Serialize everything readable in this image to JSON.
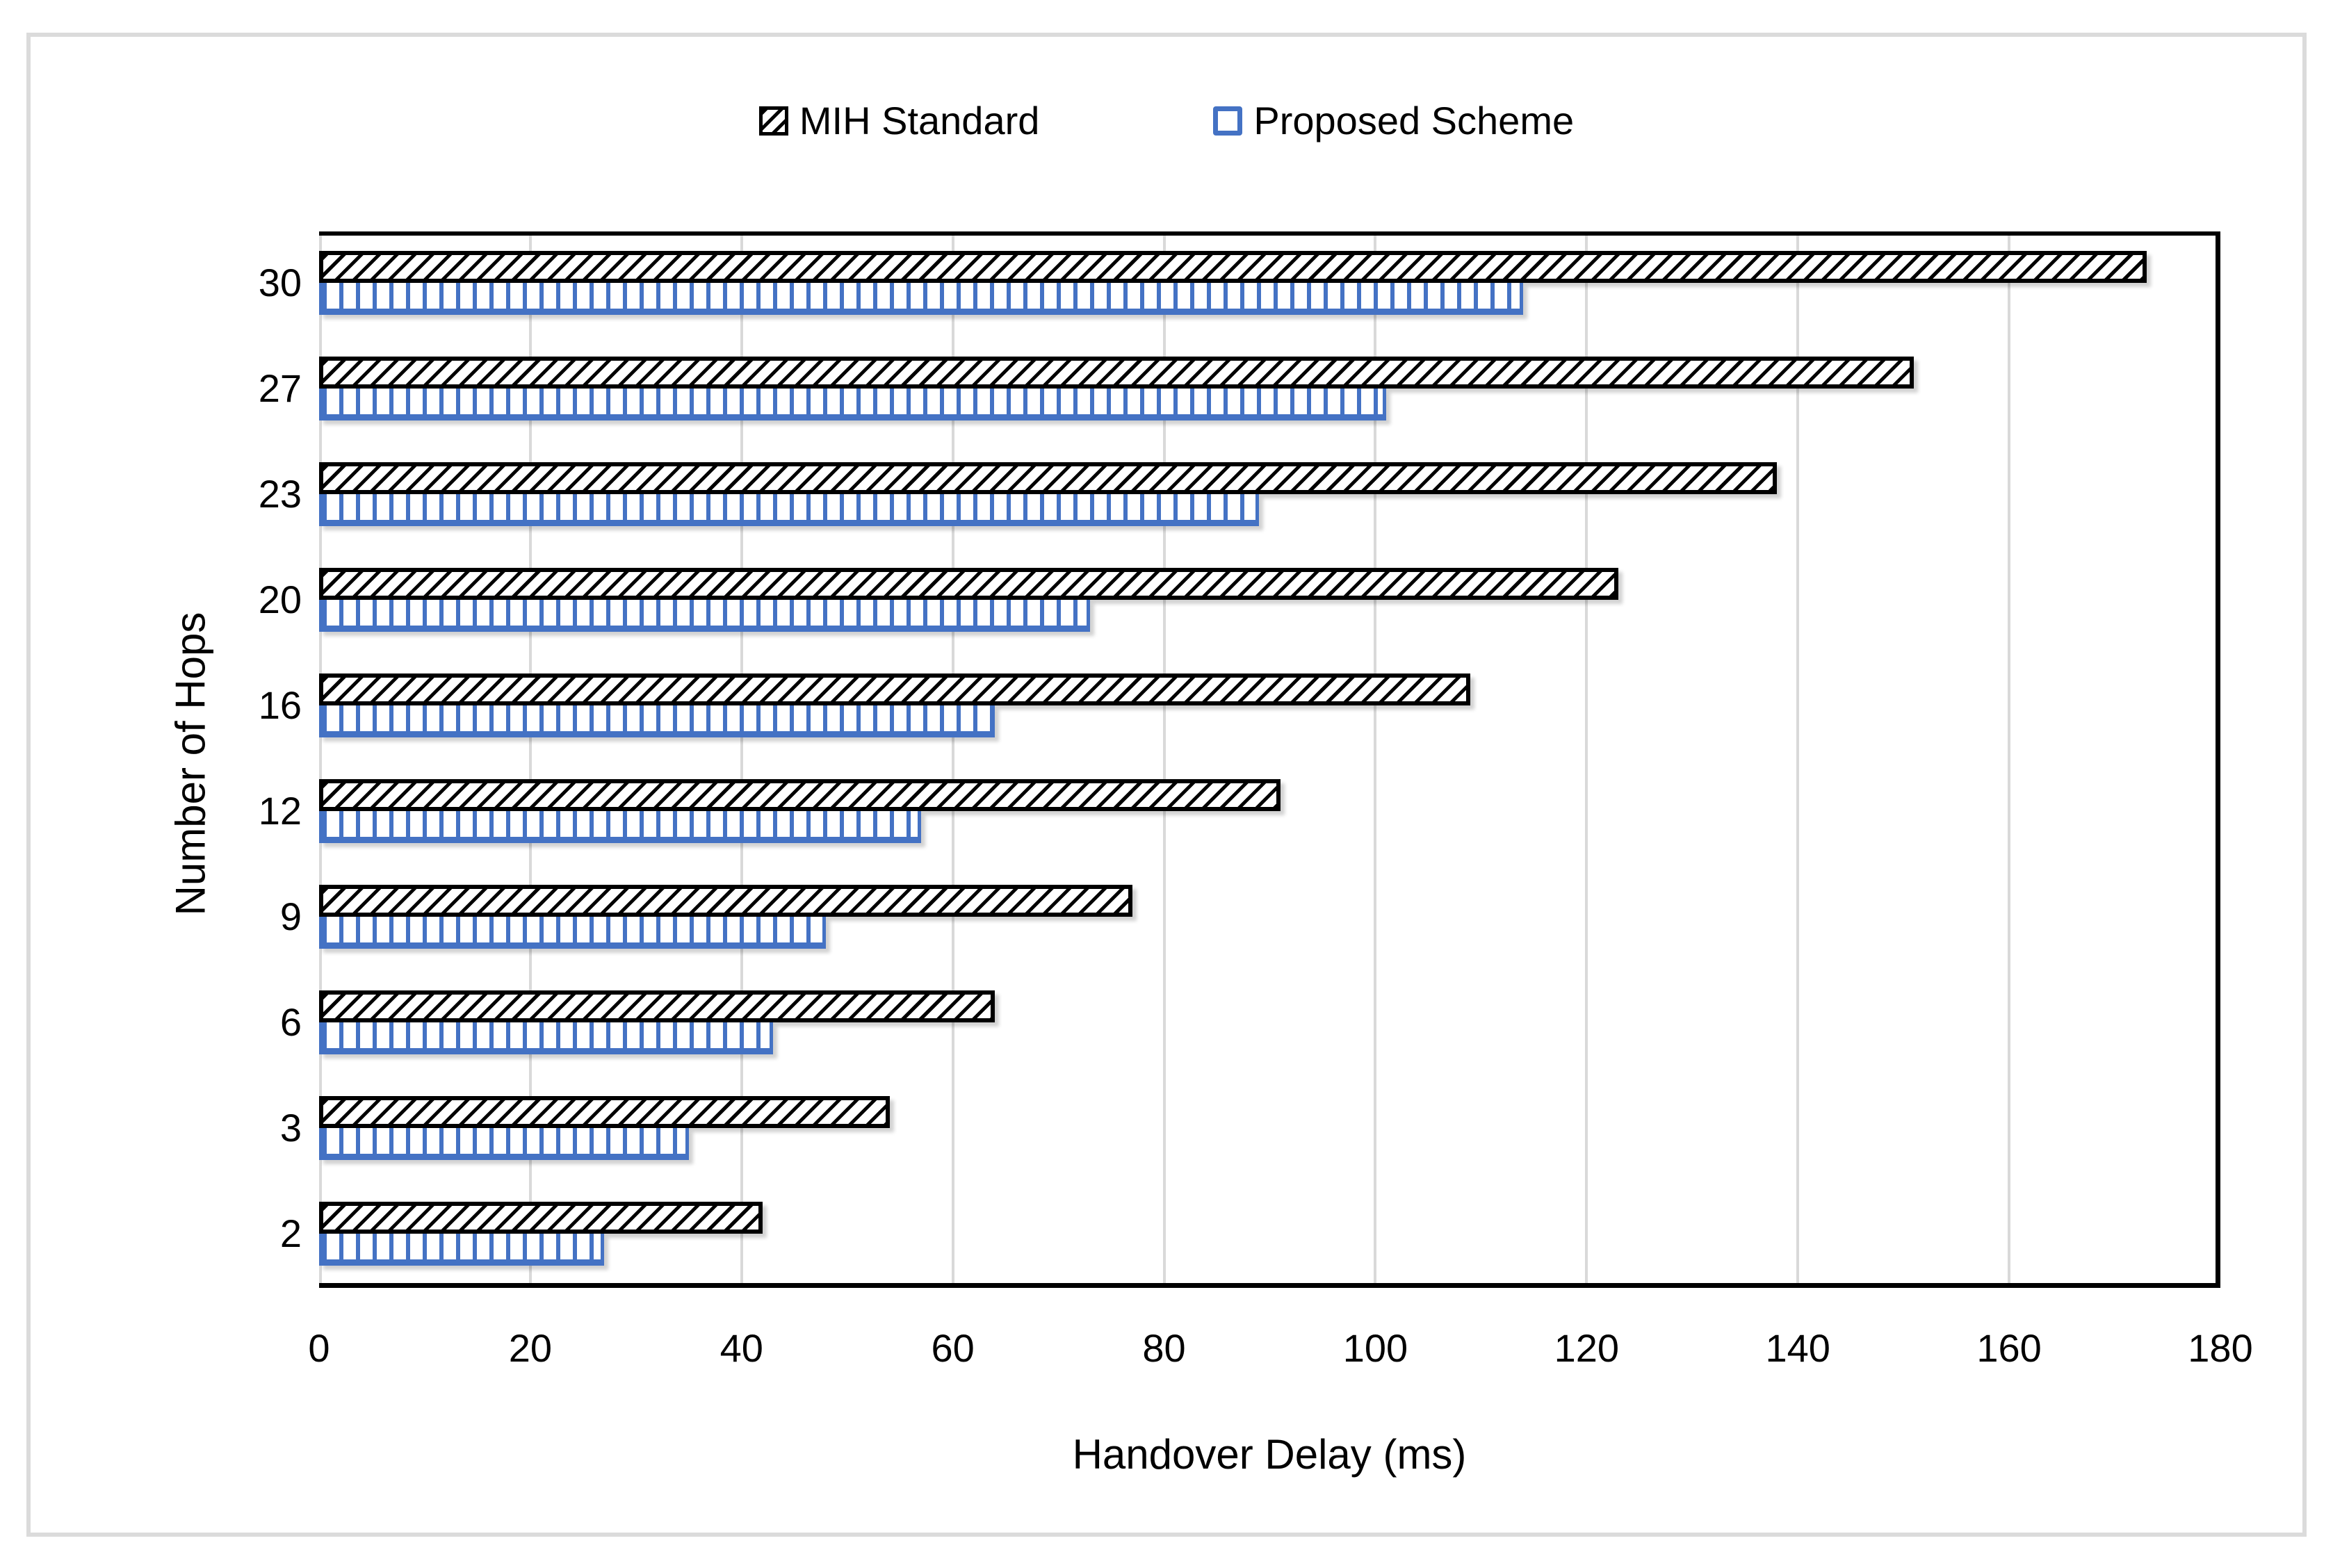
{
  "figure": {
    "type": "horizontal-grouped-bar-chart",
    "background": "#ffffff",
    "border_color": "#dbdbdb"
  },
  "legend": {
    "position": "top-center",
    "items": [
      {
        "label": "MIH Standard",
        "pattern": "black-diagonal-hatch"
      },
      {
        "label": "Proposed Scheme",
        "pattern": "blue-vertical-hatch"
      }
    ]
  },
  "chart_data": {
    "type": "bar",
    "orientation": "horizontal",
    "title": "",
    "xlabel": "Handover Delay (ms)",
    "ylabel": "Number of Hops",
    "categories": [
      30,
      27,
      23,
      20,
      16,
      12,
      9,
      6,
      3,
      2
    ],
    "series": [
      {
        "name": "MIH Standard",
        "values": [
          173,
          151,
          138,
          123,
          109,
          91,
          77,
          64,
          54,
          42
        ]
      },
      {
        "name": "Proposed Scheme",
        "values": [
          114,
          101,
          89,
          73,
          64,
          57,
          48,
          43,
          35,
          27
        ]
      }
    ],
    "xlim": [
      0,
      180
    ],
    "xticks": [
      0,
      20,
      40,
      60,
      80,
      100,
      120,
      140,
      160,
      180
    ],
    "grid": true,
    "gridline_color": "#d9d9d9",
    "legend_position": "top"
  },
  "colors": {
    "mih_hatch": "#000000",
    "proposed_blue": "#4472c4",
    "gridline": "#d9d9d9",
    "figure_border": "#dbdbdb",
    "text": "#000000"
  }
}
